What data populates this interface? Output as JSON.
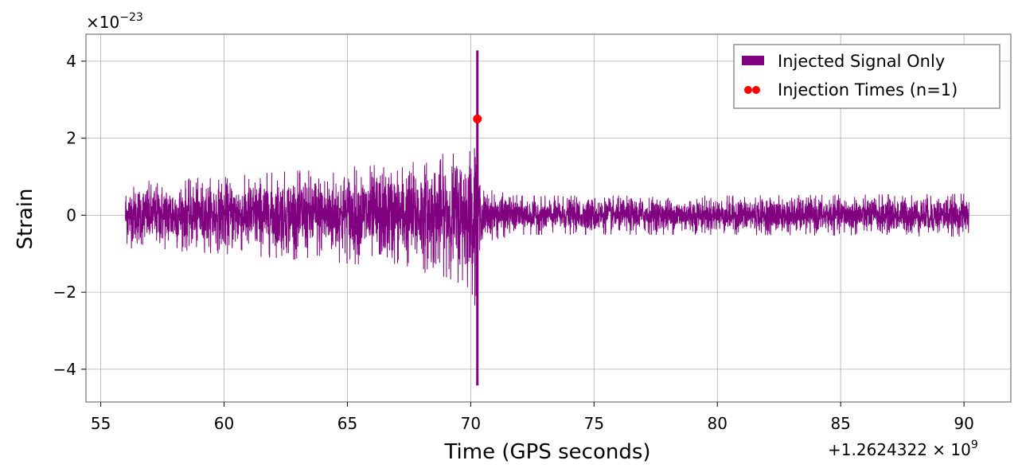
{
  "chart_data": {
    "type": "line",
    "xlabel": "Time (GPS seconds)",
    "ylabel": "Strain",
    "x_offset_label": "+1.2624322 × 10",
    "x_offset_exp": "9",
    "y_multiplier_label": "×10",
    "y_multiplier_exp": "−23",
    "xlim": [
      54.4,
      91.9
    ],
    "ylim": [
      -4.85,
      4.7
    ],
    "xticks": [
      55,
      60,
      65,
      70,
      75,
      80,
      85,
      90
    ],
    "xtick_labels": [
      "55",
      "60",
      "65",
      "70",
      "75",
      "80",
      "85",
      "90"
    ],
    "yticks": [
      -4,
      -2,
      0,
      2,
      4
    ],
    "ytick_labels": [
      "−4",
      "−2",
      "0",
      "2",
      "4"
    ],
    "grid": true,
    "legend_position": "top-right",
    "series": [
      {
        "name": "Injected Signal Only",
        "type": "line",
        "color": "#800080",
        "x_start": 56.0,
        "x_end": 90.2,
        "peak_time": 70.27,
        "peak_max": 4.28,
        "peak_min": -4.42,
        "envelope": [
          {
            "x": 56.0,
            "amp": 0.85
          },
          {
            "x": 60.0,
            "amp": 1.0
          },
          {
            "x": 64.0,
            "amp": 1.2
          },
          {
            "x": 67.0,
            "amp": 1.35
          },
          {
            "x": 69.0,
            "amp": 1.6
          },
          {
            "x": 70.0,
            "amp": 1.9
          },
          {
            "x": 70.27,
            "amp": 2.6
          },
          {
            "x": 70.4,
            "amp": 0.7
          },
          {
            "x": 72.0,
            "amp": 0.5
          },
          {
            "x": 80.0,
            "amp": 0.5
          },
          {
            "x": 90.2,
            "amp": 0.55
          }
        ]
      },
      {
        "name": "Injection Times (n=1)",
        "type": "scatter",
        "color": "#ff0000",
        "points": [
          {
            "x": 70.27,
            "y": 2.5
          }
        ]
      }
    ]
  }
}
